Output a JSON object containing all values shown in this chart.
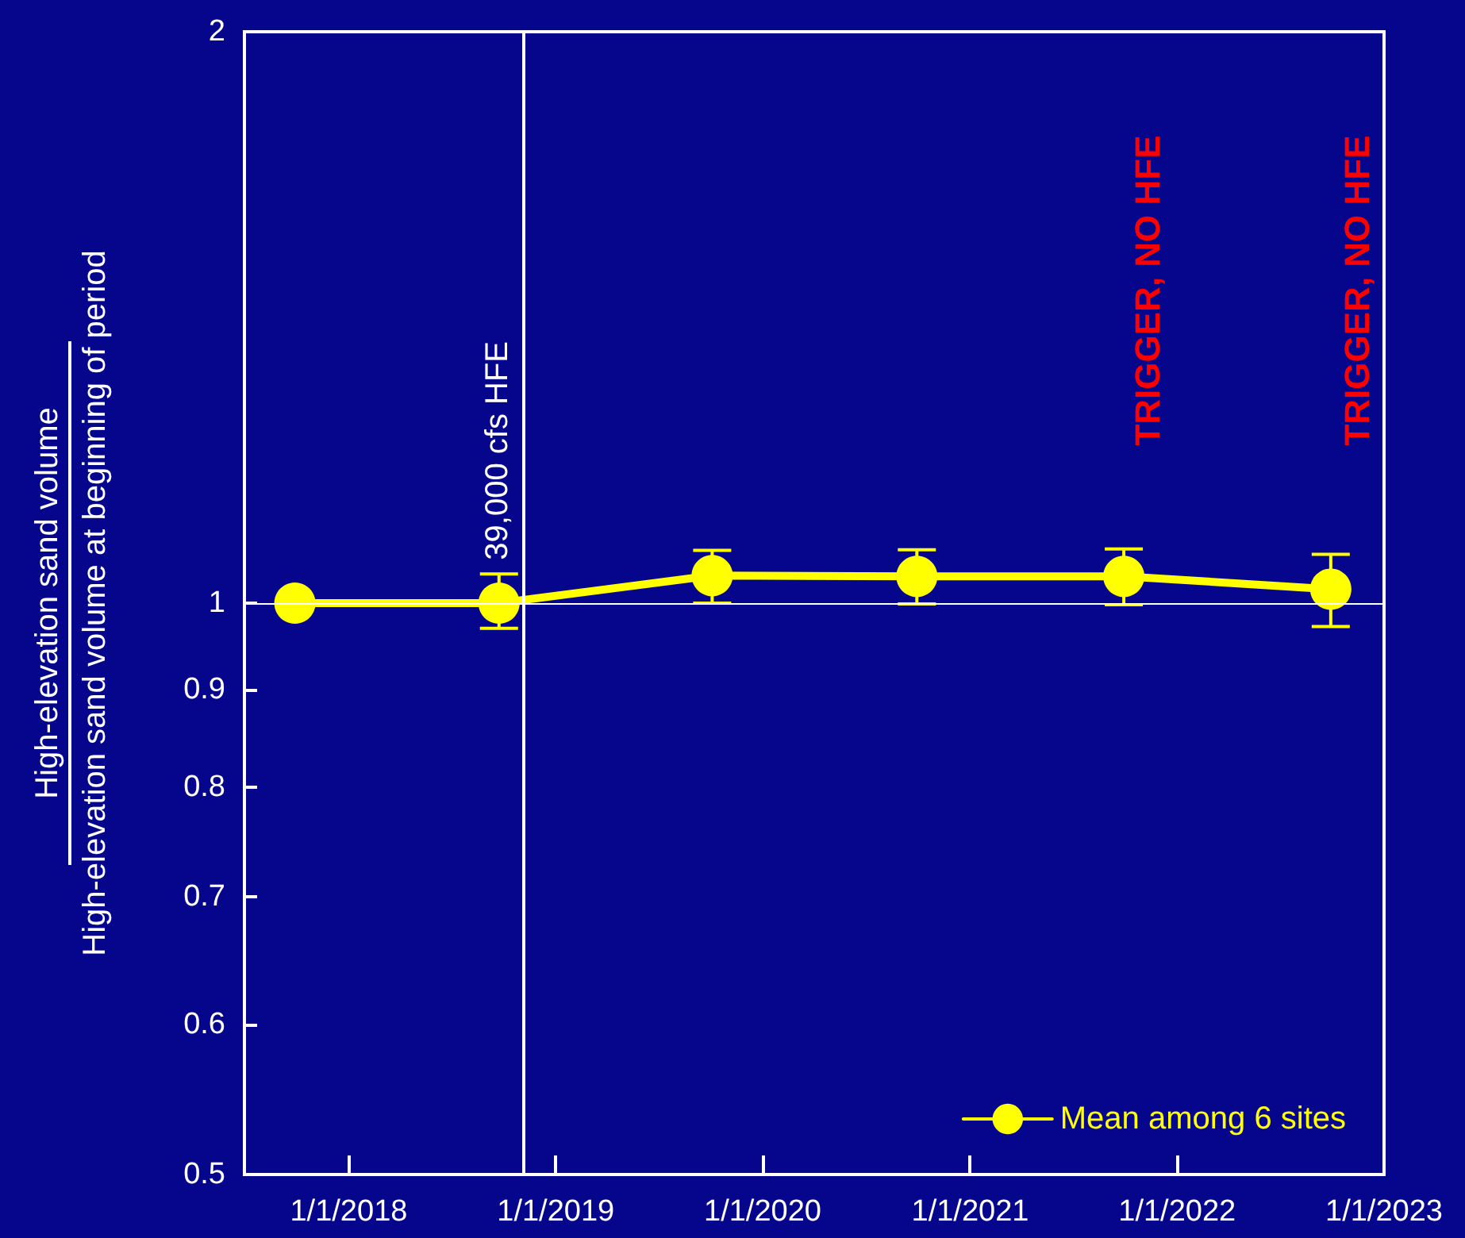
{
  "chart_data": {
    "type": "line",
    "ylabel": "High-elevation sand volume\nHigh-elevation sand volume at beginning of period",
    "x": [
      "2017-09-28",
      "2018-09-23",
      "2019-10-04",
      "2020-09-29",
      "2021-09-29",
      "2022-09-29"
    ],
    "series": [
      {
        "name": "Mean among 6 sites",
        "color": "#ffff00",
        "values": [
          1.0,
          1.0,
          1.034,
          1.033,
          1.033,
          1.017
        ],
        "errors": [
          null,
          [
            0.97,
            1.036
          ],
          [
            1.0,
            1.066
          ],
          [
            0.999,
            1.067
          ],
          [
            0.998,
            1.068
          ],
          [
            0.972,
            1.061
          ]
        ]
      }
    ],
    "xlim": [
      "2017-07-01",
      "2023-01-01"
    ],
    "xticks": [
      {
        "value": "2018-01-01",
        "label": "1/1/2018"
      },
      {
        "value": "2019-01-01",
        "label": "1/1/2019"
      },
      {
        "value": "2020-01-01",
        "label": "1/1/2020"
      },
      {
        "value": "2021-01-01",
        "label": "1/1/2021"
      },
      {
        "value": "2022-01-01",
        "label": "1/1/2022"
      },
      {
        "value": "2023-01-01",
        "label": "1/1/2023"
      }
    ],
    "ylim": [
      0.5,
      2
    ],
    "yticks": [
      0.5,
      0.6,
      0.7,
      0.8,
      0.9,
      1,
      2
    ],
    "log": "y",
    "grid": false,
    "legend": "bottom right",
    "marker": "circle",
    "line_style": "solid",
    "ref_lines": [
      {
        "axis": "x",
        "value": "2018-11-05",
        "label": "39,000 cfs HFE",
        "color": "#ffffff"
      },
      {
        "axis": "y",
        "value": 1,
        "label": null,
        "color": "#ffffff"
      }
    ],
    "annotations": [
      "TRIGGER, NO HFE",
      "TRIGGER, NO HFE"
    ]
  }
}
